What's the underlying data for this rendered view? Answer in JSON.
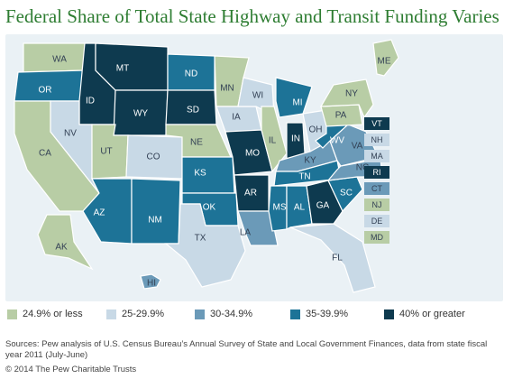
{
  "title": "Federal Share of Total State Highway and Transit Funding Varies",
  "colors": {
    "c1": "#b8cda5",
    "c2": "#c8d9e6",
    "c3": "#6b9ab8",
    "c4": "#1d7397",
    "c5": "#0e3a4f",
    "background": "#eaf1f5",
    "border": "#ffffff"
  },
  "legend": [
    {
      "label": "24.9% or less",
      "color": "#b8cda5"
    },
    {
      "label": "25-29.9%",
      "color": "#c8d9e6"
    },
    {
      "label": "30-34.9%",
      "color": "#6b9ab8"
    },
    {
      "label": "35-39.9%",
      "color": "#1d7397"
    },
    {
      "label": "40% or greater",
      "color": "#0e3a4f"
    }
  ],
  "states": [
    {
      "abbr": "WA",
      "category": 1
    },
    {
      "abbr": "OR",
      "category": 4
    },
    {
      "abbr": "CA",
      "category": 1
    },
    {
      "abbr": "ID",
      "category": 5
    },
    {
      "abbr": "NV",
      "category": 2
    },
    {
      "abbr": "MT",
      "category": 5
    },
    {
      "abbr": "WY",
      "category": 5
    },
    {
      "abbr": "UT",
      "category": 1
    },
    {
      "abbr": "AZ",
      "category": 4
    },
    {
      "abbr": "CO",
      "category": 2
    },
    {
      "abbr": "NM",
      "category": 4
    },
    {
      "abbr": "ND",
      "category": 4
    },
    {
      "abbr": "SD",
      "category": 5
    },
    {
      "abbr": "NE",
      "category": 1
    },
    {
      "abbr": "KS",
      "category": 4
    },
    {
      "abbr": "OK",
      "category": 4
    },
    {
      "abbr": "TX",
      "category": 2
    },
    {
      "abbr": "MN",
      "category": 1
    },
    {
      "abbr": "IA",
      "category": 2
    },
    {
      "abbr": "MO",
      "category": 5
    },
    {
      "abbr": "AR",
      "category": 5
    },
    {
      "abbr": "LA",
      "category": 3
    },
    {
      "abbr": "WI",
      "category": 2
    },
    {
      "abbr": "IL",
      "category": 1
    },
    {
      "abbr": "MI",
      "category": 4
    },
    {
      "abbr": "IN",
      "category": 5
    },
    {
      "abbr": "OH",
      "category": 2
    },
    {
      "abbr": "KY",
      "category": 3
    },
    {
      "abbr": "TN",
      "category": 4
    },
    {
      "abbr": "MS",
      "category": 4
    },
    {
      "abbr": "AL",
      "category": 4
    },
    {
      "abbr": "GA",
      "category": 5
    },
    {
      "abbr": "FL",
      "category": 2
    },
    {
      "abbr": "SC",
      "category": 4
    },
    {
      "abbr": "NC",
      "category": 3
    },
    {
      "abbr": "VA",
      "category": 3
    },
    {
      "abbr": "WV",
      "category": 4
    },
    {
      "abbr": "PA",
      "category": 1
    },
    {
      "abbr": "NY",
      "category": 1
    },
    {
      "abbr": "ME",
      "category": 1
    },
    {
      "abbr": "AK",
      "category": 1
    },
    {
      "abbr": "HI",
      "category": 3
    }
  ],
  "small_states": [
    {
      "abbr": "VT",
      "category": 5
    },
    {
      "abbr": "NH",
      "category": 2
    },
    {
      "abbr": "MA",
      "category": 2
    },
    {
      "abbr": "RI",
      "category": 5
    },
    {
      "abbr": "CT",
      "category": 3
    },
    {
      "abbr": "NJ",
      "category": 1
    },
    {
      "abbr": "DE",
      "category": 2
    },
    {
      "abbr": "MD",
      "category": 1
    }
  ],
  "sources": "Sources: Pew analysis of U.S. Census Bureau’s Annual Survey of State and Local Government Finances, data from state fiscal year 2011 (July-June)",
  "copyright": "© 2014 The Pew Charitable Trusts"
}
